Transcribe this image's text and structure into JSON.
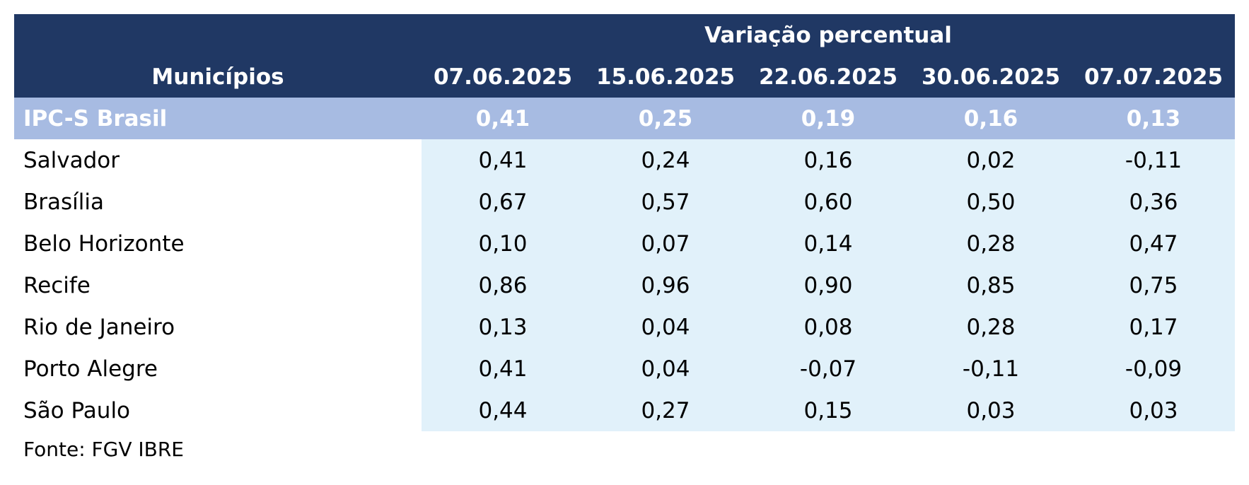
{
  "chart_data": {
    "type": "table",
    "header_group": "Variação percentual",
    "row_header_label": "Municípios",
    "columns": [
      "07.06.2025",
      "15.06.2025",
      "22.06.2025",
      "30.06.2025",
      "07.07.2025"
    ],
    "summary_row": {
      "name": "IPC-S Brasil",
      "values": [
        "0,41",
        "0,25",
        "0,19",
        "0,16",
        "0,13"
      ]
    },
    "rows": [
      {
        "name": "Salvador",
        "values": [
          "0,41",
          "0,24",
          "0,16",
          "0,02",
          "-0,11"
        ]
      },
      {
        "name": "Brasília",
        "values": [
          "0,67",
          "0,57",
          "0,60",
          "0,50",
          "0,36"
        ]
      },
      {
        "name": "Belo Horizonte",
        "values": [
          "0,10",
          "0,07",
          "0,14",
          "0,28",
          "0,47"
        ]
      },
      {
        "name": "Recife",
        "values": [
          "0,86",
          "0,96",
          "0,90",
          "0,85",
          "0,75"
        ]
      },
      {
        "name": "Rio de Janeiro",
        "values": [
          "0,13",
          "0,04",
          "0,08",
          "0,28",
          "0,17"
        ]
      },
      {
        "name": "Porto Alegre",
        "values": [
          "0,41",
          "0,04",
          "-0,07",
          "-0,11",
          "-0,09"
        ]
      },
      {
        "name": "São Paulo",
        "values": [
          "0,44",
          "0,27",
          "0,15",
          "0,03",
          "0,03"
        ]
      }
    ],
    "source": "Fonte: FGV IBRE",
    "colors": {
      "header": "#203864",
      "summary": "#a7bbe2",
      "data_cells": "#e1f1fa"
    }
  }
}
